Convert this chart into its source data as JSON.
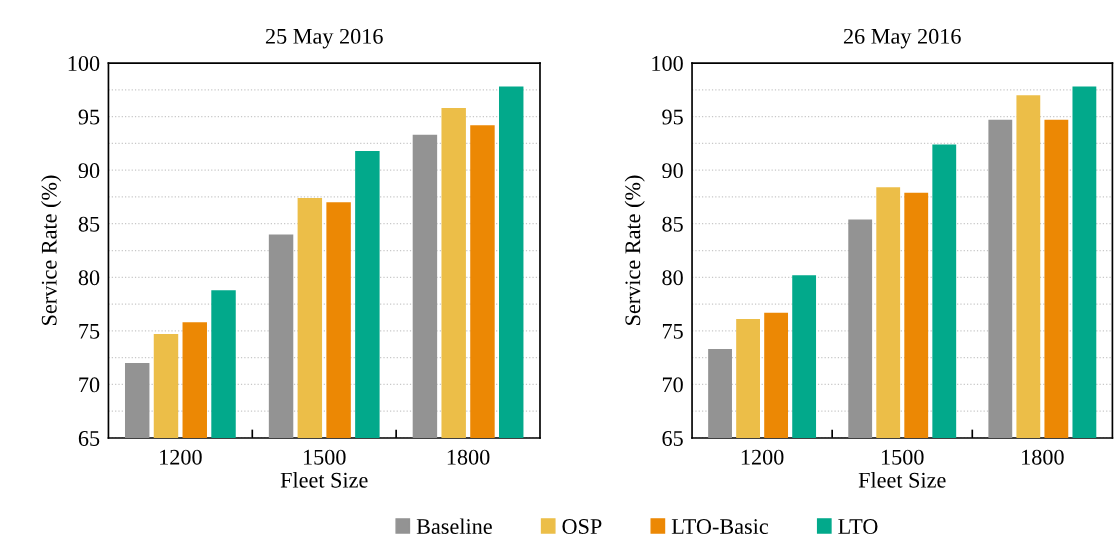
{
  "chart_data": [
    {
      "type": "bar",
      "title": "25 May 2016",
      "xlabel": "Fleet Size",
      "ylabel": "Service Rate (%)",
      "categories": [
        "1200",
        "1500",
        "1800"
      ],
      "series": [
        {
          "name": "Baseline",
          "color": "#939393",
          "values": [
            72.0,
            84.0,
            93.3
          ]
        },
        {
          "name": "OSP",
          "color": "#ecbe48",
          "values": [
            74.7,
            87.4,
            95.8
          ]
        },
        {
          "name": "LTO-Basic",
          "color": "#ec8804",
          "values": [
            75.8,
            87.0,
            94.2
          ]
        },
        {
          "name": "LTO",
          "color": "#02a98b",
          "values": [
            78.8,
            91.8,
            97.8
          ]
        }
      ],
      "ylim": [
        65,
        100
      ],
      "yticks": [
        65,
        {
          "value": 67.5,
          "label": null
        },
        70,
        {
          "value": 72.5,
          "label": null
        },
        75,
        {
          "value": 77.5,
          "label": null
        },
        80,
        {
          "value": 82.5,
          "label": null
        },
        85,
        {
          "value": 87.5,
          "label": null
        },
        90,
        {
          "value": 92.5,
          "label": null
        },
        95,
        {
          "value": 97.5,
          "label": null
        },
        100
      ],
      "grid": "y",
      "legend": "bottom"
    },
    {
      "type": "bar",
      "title": "26 May 2016",
      "xlabel": "Fleet Size",
      "ylabel": "Service Rate (%)",
      "categories": [
        "1200",
        "1500",
        "1800"
      ],
      "series": [
        {
          "color": "#939393",
          "values": [
            73.3,
            85.4,
            94.7
          ]
        },
        {
          "color": "#ecbe48",
          "values": [
            76.1,
            88.4,
            97.0
          ]
        },
        {
          "color": "#ec8804",
          "values": [
            76.7,
            87.9,
            94.7
          ]
        },
        {
          "color": "#02a98b",
          "values": [
            80.2,
            92.4,
            97.8
          ]
        }
      ],
      "ylim": [
        65,
        100
      ],
      "yticks": [
        65,
        {
          "value": 67.5,
          "label": null
        },
        70,
        {
          "value": 72.5,
          "label": null
        },
        75,
        {
          "value": 77.5,
          "label": null
        },
        80,
        {
          "value": 82.5,
          "label": null
        },
        85,
        {
          "value": 87.5,
          "label": null
        },
        90,
        {
          "value": 92.5,
          "label": null
        },
        95,
        {
          "value": 97.5,
          "label": null
        },
        100
      ],
      "grid": "y",
      "legend": false
    }
  ]
}
